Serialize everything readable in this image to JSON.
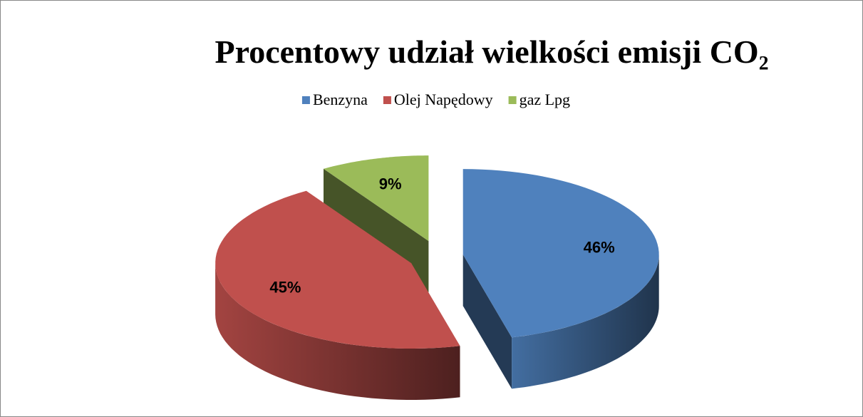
{
  "chart_data": {
    "type": "pie",
    "title": "Procentowy udział wielkości emisji CO₂",
    "categories": [
      "Benzyna",
      "Olej Napędowy",
      "gaz Lpg"
    ],
    "values": [
      46,
      45,
      9
    ],
    "value_labels": [
      "46%",
      "45%",
      "9%"
    ],
    "colors": [
      "#4f81bd",
      "#c0504d",
      "#9bbb59"
    ],
    "legend": "top"
  }
}
